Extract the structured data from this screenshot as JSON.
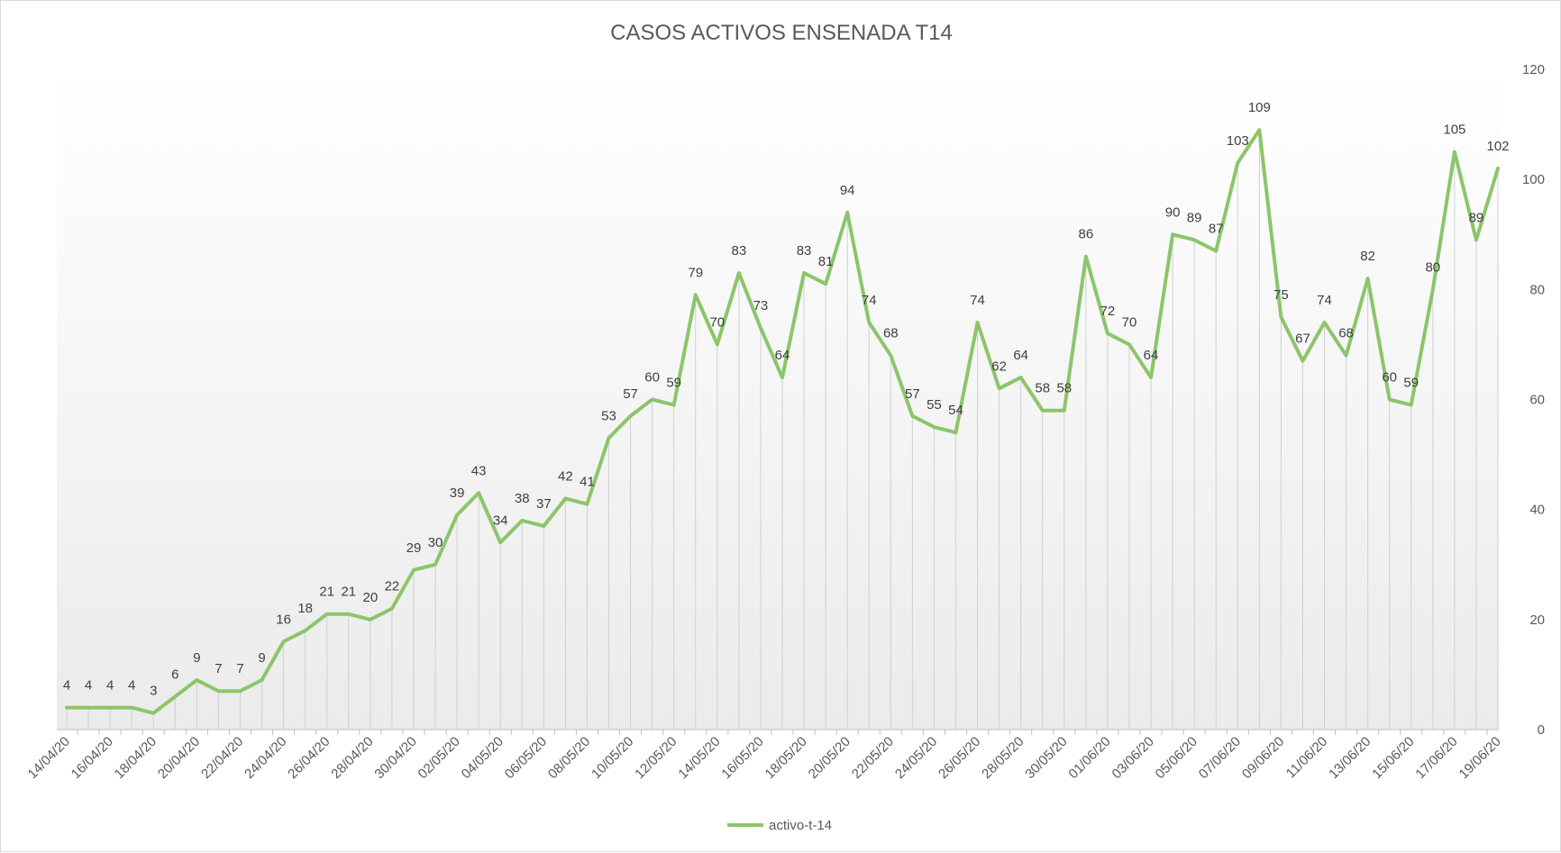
{
  "chart_data": {
    "type": "line",
    "title": "CASOS ACTIVOS ENSENADA T14",
    "xlabel": "",
    "ylabel": "",
    "ylim": [
      0,
      120
    ],
    "yticks": [
      "0",
      "20",
      "40",
      "60",
      "80",
      "100",
      "120"
    ],
    "y_axis_side": "right",
    "categories": [
      "14/04/20",
      "15/04/20",
      "16/04/20",
      "17/04/20",
      "18/04/20",
      "19/04/20",
      "20/04/20",
      "21/04/20",
      "22/04/20",
      "23/04/20",
      "24/04/20",
      "25/04/20",
      "26/04/20",
      "27/04/20",
      "28/04/20",
      "29/04/20",
      "30/04/20",
      "01/05/20",
      "02/05/20",
      "03/05/20",
      "04/05/20",
      "05/05/20",
      "06/05/20",
      "07/05/20",
      "08/05/20",
      "09/05/20",
      "10/05/20",
      "11/05/20",
      "12/05/20",
      "13/05/20",
      "14/05/20",
      "15/05/20",
      "16/05/20",
      "17/05/20",
      "18/05/20",
      "19/05/20",
      "20/05/20",
      "21/05/20",
      "22/05/20",
      "23/05/20",
      "24/05/20",
      "25/05/20",
      "26/05/20",
      "27/05/20",
      "28/05/20",
      "29/05/20",
      "30/05/20",
      "31/05/20",
      "01/06/20",
      "02/06/20",
      "03/06/20",
      "04/06/20",
      "05/06/20",
      "06/06/20",
      "07/06/20",
      "08/06/20",
      "09/06/20",
      "10/06/20",
      "11/06/20",
      "12/06/20",
      "13/06/20",
      "14/06/20",
      "15/06/20",
      "16/06/20",
      "17/06/20",
      "18/06/20",
      "19/06/20"
    ],
    "tick_labels": [
      "14/04/20",
      "16/04/20",
      "18/04/20",
      "20/04/20",
      "22/04/20",
      "24/04/20",
      "26/04/20",
      "28/04/20",
      "30/04/20",
      "02/05/20",
      "04/05/20",
      "06/05/20",
      "08/05/20",
      "10/05/20",
      "12/05/20",
      "14/05/20",
      "16/05/20",
      "18/05/20",
      "20/05/20",
      "22/05/20",
      "24/05/20",
      "26/05/20",
      "28/05/20",
      "30/05/20",
      "01/06/20",
      "03/06/20",
      "05/06/20",
      "07/06/20",
      "09/06/20",
      "11/06/20",
      "13/06/20",
      "15/06/20",
      "17/06/20",
      "19/06/20"
    ],
    "series": [
      {
        "name": "activo-t-14",
        "color": "#8cc56a",
        "values": [
          4,
          4,
          4,
          4,
          3,
          6,
          9,
          7,
          7,
          9,
          16,
          18,
          21,
          21,
          20,
          22,
          29,
          30,
          39,
          43,
          34,
          38,
          37,
          42,
          41,
          53,
          57,
          60,
          59,
          79,
          70,
          83,
          73,
          64,
          83,
          81,
          94,
          74,
          68,
          57,
          55,
          54,
          74,
          62,
          64,
          58,
          58,
          86,
          72,
          70,
          64,
          90,
          89,
          87,
          103,
          109,
          75,
          67,
          74,
          68,
          82,
          60,
          59,
          80,
          105,
          89,
          102
        ]
      }
    ],
    "drop_lines": true,
    "drop_line_color": "#d0d0d0",
    "grid": false,
    "legend_position": "bottom"
  }
}
